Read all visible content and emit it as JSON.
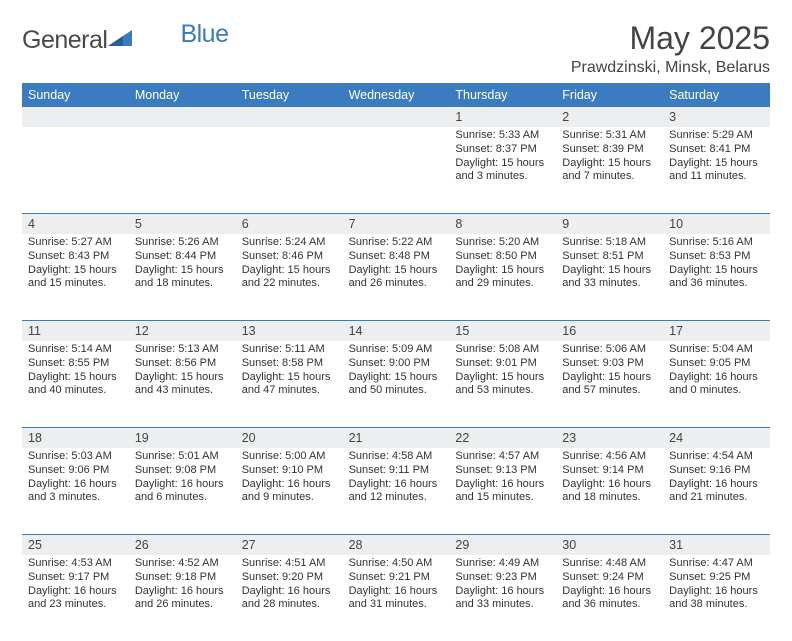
{
  "logo": {
    "text_a": "General",
    "text_b": "Blue"
  },
  "title": "May 2025",
  "subtitle": "Prawdzinski, Minsk, Belarus",
  "colors": {
    "header_bg": "#3b7bbf",
    "header_fg": "#ffffff",
    "daynum_bg": "#eceeef",
    "text": "#333333",
    "rule": "#3b7bbf"
  },
  "dow": [
    "Sunday",
    "Monday",
    "Tuesday",
    "Wednesday",
    "Thursday",
    "Friday",
    "Saturday"
  ],
  "weeks": [
    [
      {
        "n": ""
      },
      {
        "n": ""
      },
      {
        "n": ""
      },
      {
        "n": ""
      },
      {
        "n": "1",
        "sr": "Sunrise: 5:33 AM",
        "ss": "Sunset: 8:37 PM",
        "d1": "Daylight: 15 hours",
        "d2": "and 3 minutes."
      },
      {
        "n": "2",
        "sr": "Sunrise: 5:31 AM",
        "ss": "Sunset: 8:39 PM",
        "d1": "Daylight: 15 hours",
        "d2": "and 7 minutes."
      },
      {
        "n": "3",
        "sr": "Sunrise: 5:29 AM",
        "ss": "Sunset: 8:41 PM",
        "d1": "Daylight: 15 hours",
        "d2": "and 11 minutes."
      }
    ],
    [
      {
        "n": "4",
        "sr": "Sunrise: 5:27 AM",
        "ss": "Sunset: 8:43 PM",
        "d1": "Daylight: 15 hours",
        "d2": "and 15 minutes."
      },
      {
        "n": "5",
        "sr": "Sunrise: 5:26 AM",
        "ss": "Sunset: 8:44 PM",
        "d1": "Daylight: 15 hours",
        "d2": "and 18 minutes."
      },
      {
        "n": "6",
        "sr": "Sunrise: 5:24 AM",
        "ss": "Sunset: 8:46 PM",
        "d1": "Daylight: 15 hours",
        "d2": "and 22 minutes."
      },
      {
        "n": "7",
        "sr": "Sunrise: 5:22 AM",
        "ss": "Sunset: 8:48 PM",
        "d1": "Daylight: 15 hours",
        "d2": "and 26 minutes."
      },
      {
        "n": "8",
        "sr": "Sunrise: 5:20 AM",
        "ss": "Sunset: 8:50 PM",
        "d1": "Daylight: 15 hours",
        "d2": "and 29 minutes."
      },
      {
        "n": "9",
        "sr": "Sunrise: 5:18 AM",
        "ss": "Sunset: 8:51 PM",
        "d1": "Daylight: 15 hours",
        "d2": "and 33 minutes."
      },
      {
        "n": "10",
        "sr": "Sunrise: 5:16 AM",
        "ss": "Sunset: 8:53 PM",
        "d1": "Daylight: 15 hours",
        "d2": "and 36 minutes."
      }
    ],
    [
      {
        "n": "11",
        "sr": "Sunrise: 5:14 AM",
        "ss": "Sunset: 8:55 PM",
        "d1": "Daylight: 15 hours",
        "d2": "and 40 minutes."
      },
      {
        "n": "12",
        "sr": "Sunrise: 5:13 AM",
        "ss": "Sunset: 8:56 PM",
        "d1": "Daylight: 15 hours",
        "d2": "and 43 minutes."
      },
      {
        "n": "13",
        "sr": "Sunrise: 5:11 AM",
        "ss": "Sunset: 8:58 PM",
        "d1": "Daylight: 15 hours",
        "d2": "and 47 minutes."
      },
      {
        "n": "14",
        "sr": "Sunrise: 5:09 AM",
        "ss": "Sunset: 9:00 PM",
        "d1": "Daylight: 15 hours",
        "d2": "and 50 minutes."
      },
      {
        "n": "15",
        "sr": "Sunrise: 5:08 AM",
        "ss": "Sunset: 9:01 PM",
        "d1": "Daylight: 15 hours",
        "d2": "and 53 minutes."
      },
      {
        "n": "16",
        "sr": "Sunrise: 5:06 AM",
        "ss": "Sunset: 9:03 PM",
        "d1": "Daylight: 15 hours",
        "d2": "and 57 minutes."
      },
      {
        "n": "17",
        "sr": "Sunrise: 5:04 AM",
        "ss": "Sunset: 9:05 PM",
        "d1": "Daylight: 16 hours",
        "d2": "and 0 minutes."
      }
    ],
    [
      {
        "n": "18",
        "sr": "Sunrise: 5:03 AM",
        "ss": "Sunset: 9:06 PM",
        "d1": "Daylight: 16 hours",
        "d2": "and 3 minutes."
      },
      {
        "n": "19",
        "sr": "Sunrise: 5:01 AM",
        "ss": "Sunset: 9:08 PM",
        "d1": "Daylight: 16 hours",
        "d2": "and 6 minutes."
      },
      {
        "n": "20",
        "sr": "Sunrise: 5:00 AM",
        "ss": "Sunset: 9:10 PM",
        "d1": "Daylight: 16 hours",
        "d2": "and 9 minutes."
      },
      {
        "n": "21",
        "sr": "Sunrise: 4:58 AM",
        "ss": "Sunset: 9:11 PM",
        "d1": "Daylight: 16 hours",
        "d2": "and 12 minutes."
      },
      {
        "n": "22",
        "sr": "Sunrise: 4:57 AM",
        "ss": "Sunset: 9:13 PM",
        "d1": "Daylight: 16 hours",
        "d2": "and 15 minutes."
      },
      {
        "n": "23",
        "sr": "Sunrise: 4:56 AM",
        "ss": "Sunset: 9:14 PM",
        "d1": "Daylight: 16 hours",
        "d2": "and 18 minutes."
      },
      {
        "n": "24",
        "sr": "Sunrise: 4:54 AM",
        "ss": "Sunset: 9:16 PM",
        "d1": "Daylight: 16 hours",
        "d2": "and 21 minutes."
      }
    ],
    [
      {
        "n": "25",
        "sr": "Sunrise: 4:53 AM",
        "ss": "Sunset: 9:17 PM",
        "d1": "Daylight: 16 hours",
        "d2": "and 23 minutes."
      },
      {
        "n": "26",
        "sr": "Sunrise: 4:52 AM",
        "ss": "Sunset: 9:18 PM",
        "d1": "Daylight: 16 hours",
        "d2": "and 26 minutes."
      },
      {
        "n": "27",
        "sr": "Sunrise: 4:51 AM",
        "ss": "Sunset: 9:20 PM",
        "d1": "Daylight: 16 hours",
        "d2": "and 28 minutes."
      },
      {
        "n": "28",
        "sr": "Sunrise: 4:50 AM",
        "ss": "Sunset: 9:21 PM",
        "d1": "Daylight: 16 hours",
        "d2": "and 31 minutes."
      },
      {
        "n": "29",
        "sr": "Sunrise: 4:49 AM",
        "ss": "Sunset: 9:23 PM",
        "d1": "Daylight: 16 hours",
        "d2": "and 33 minutes."
      },
      {
        "n": "30",
        "sr": "Sunrise: 4:48 AM",
        "ss": "Sunset: 9:24 PM",
        "d1": "Daylight: 16 hours",
        "d2": "and 36 minutes."
      },
      {
        "n": "31",
        "sr": "Sunrise: 4:47 AM",
        "ss": "Sunset: 9:25 PM",
        "d1": "Daylight: 16 hours",
        "d2": "and 38 minutes."
      }
    ]
  ]
}
